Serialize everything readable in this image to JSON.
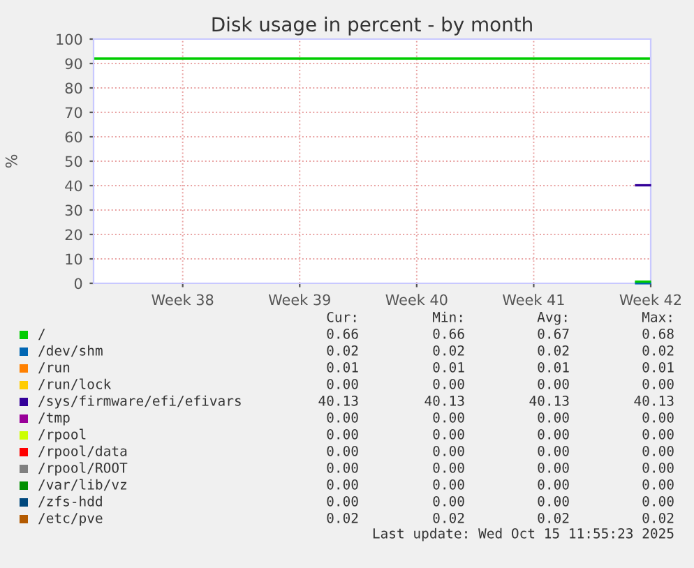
{
  "chart_data": {
    "type": "line",
    "title": "Disk usage in percent - by month",
    "ylabel": "%",
    "xlim": [
      "2025-09-12T16:00",
      "2025-10-16T00:00"
    ],
    "xticks": [
      {
        "value": "2025-09-18",
        "label": "Week 38"
      },
      {
        "value": "2025-09-25",
        "label": "Week 39"
      },
      {
        "value": "2025-10-02",
        "label": "Week 40"
      },
      {
        "value": "2025-10-09",
        "label": "Week 41"
      },
      {
        "value": "2025-10-16",
        "label": "Week 42"
      }
    ],
    "ylim": [
      0,
      100
    ],
    "yticks": [
      0,
      10,
      20,
      30,
      40,
      50,
      60,
      70,
      80,
      90,
      100
    ],
    "grid": true,
    "legend": "bottom",
    "marker": "none",
    "line_style": "solid",
    "ref_lines": [
      {
        "axis": "y",
        "value": 92,
        "label": null,
        "color": "#00cc00",
        "line_style": "solid"
      }
    ],
    "series": [
      {
        "name": "/",
        "color": "#00cc00",
        "x": [
          "2025-10-15T03:00",
          "2025-10-15T23:00"
        ],
        "values": [
          0.68,
          0.66
        ]
      },
      {
        "name": "/dev/shm",
        "color": "#0066b3",
        "x": [
          "2025-10-15T03:00",
          "2025-10-15T23:00"
        ],
        "values": [
          0.02,
          0.02
        ]
      },
      {
        "name": "/run",
        "color": "#ff8000",
        "values": [
          null,
          null
        ]
      },
      {
        "name": "/run/lock",
        "color": "#ffcc00",
        "values": [
          null,
          null
        ]
      },
      {
        "name": "/sys/firmware/efi/efivars",
        "color": "#330099",
        "x": [
          "2025-10-15T03:00",
          "2025-10-15T23:00"
        ],
        "values": [
          40.13,
          40.13
        ]
      },
      {
        "name": "/tmp",
        "color": "#990099",
        "values": [
          null,
          null
        ]
      },
      {
        "name": "/rpool",
        "color": "#ccff00",
        "values": [
          null,
          null
        ]
      },
      {
        "name": "/rpool/data",
        "color": "#ff0000",
        "values": [
          null,
          null
        ]
      },
      {
        "name": "/rpool/ROOT",
        "color": "#808080",
        "values": [
          null,
          null
        ]
      },
      {
        "name": "/var/lib/vz",
        "color": "#008f00",
        "values": [
          null,
          null
        ]
      },
      {
        "name": "/zfs-hdd",
        "color": "#00487d",
        "values": [
          null,
          null
        ]
      },
      {
        "name": "/etc/pve",
        "color": "#b35a00",
        "values": [
          null,
          null
        ]
      }
    ],
    "annotations": [
      "Cur:",
      "Min:",
      "Avg:",
      "Max:",
      "0.66",
      "0.66",
      "0.67",
      "0.68",
      "0.02",
      "0.02",
      "0.02",
      "0.02",
      "0.01",
      "0.01",
      "0.01",
      "0.01",
      "0.00",
      "0.00",
      "0.00",
      "0.00",
      "40.13",
      "40.13",
      "40.13",
      "40.13",
      "0.00",
      "0.00",
      "0.00",
      "0.00",
      "0.00",
      "0.00",
      "0.00",
      "0.00",
      "0.00",
      "0.00",
      "0.00",
      "0.00",
      "0.00",
      "0.00",
      "0.00",
      "0.00",
      "0.00",
      "0.00",
      "0.00",
      "0.00",
      "0.00",
      "0.00",
      "0.00",
      "0.00",
      "0.02",
      "0.02",
      "0.02",
      "0.02",
      "Last update: Wed Oct 15 11:55:23 2025"
    ]
  }
}
